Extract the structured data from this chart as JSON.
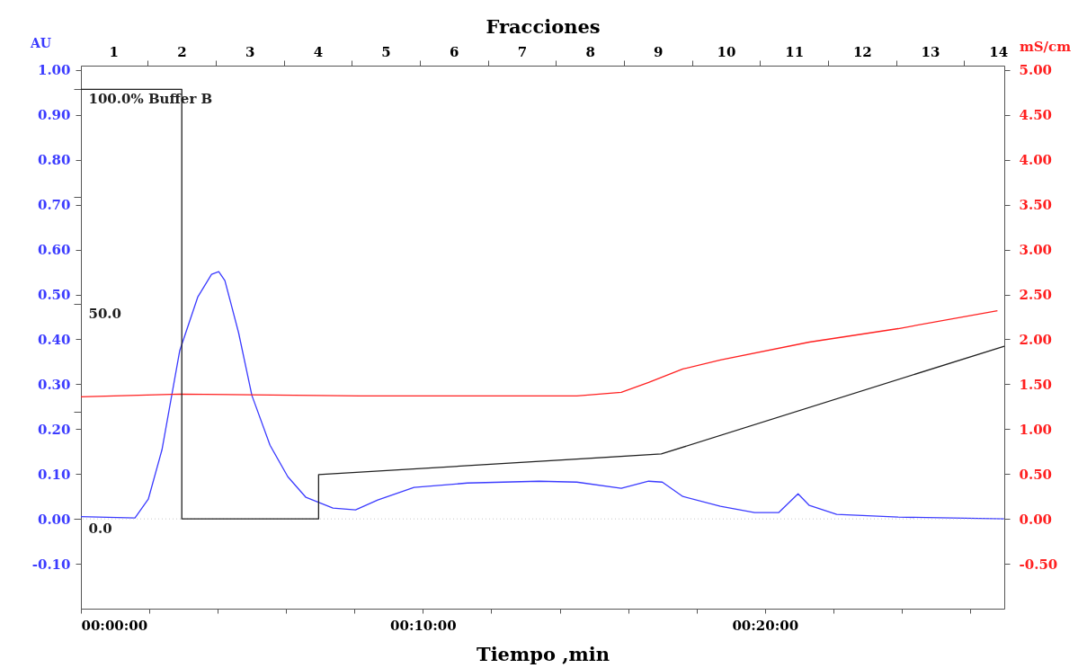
{
  "chart_data": {
    "type": "line",
    "xlabel": "Tiempo ,min",
    "ylabel": "AU",
    "y2label": "mS/cm",
    "x2label": "Fracciones",
    "xlim": [
      0,
      27
    ],
    "ylim": [
      -0.2,
      1.01
    ],
    "y2lim": [
      -1.0,
      5.05
    ],
    "y3lim": [
      -20.9,
      105.5
    ],
    "x2lim": [
      0.52,
      14.09
    ],
    "xticks": [
      {
        "value": 0,
        "label": "00:00:00"
      },
      {
        "value": 2,
        "label": null
      },
      {
        "value": 4,
        "label": null
      },
      {
        "value": 6,
        "label": null
      },
      {
        "value": 8,
        "label": null
      },
      {
        "value": 10,
        "label": "00:10:00"
      },
      {
        "value": 12,
        "label": null
      },
      {
        "value": 14,
        "label": null
      },
      {
        "value": 16,
        "label": null
      },
      {
        "value": 18,
        "label": null
      },
      {
        "value": 20,
        "label": "00:20:00"
      },
      {
        "value": 22,
        "label": null
      },
      {
        "value": 24,
        "label": null
      },
      {
        "value": 26,
        "label": null
      }
    ],
    "yticks": [
      {
        "value": -0.1,
        "label": "-0.10"
      },
      {
        "value": 0,
        "label": "0.00"
      },
      {
        "value": 0.1,
        "label": "0.10"
      },
      {
        "value": 0.2,
        "label": "0.20"
      },
      {
        "value": 0.3,
        "label": "0.30"
      },
      {
        "value": 0.4,
        "label": "0.40"
      },
      {
        "value": 0.5,
        "label": "0.50"
      },
      {
        "value": 0.6,
        "label": "0.60"
      },
      {
        "value": 0.7,
        "label": "0.70"
      },
      {
        "value": 0.8,
        "label": "0.80"
      },
      {
        "value": 0.9,
        "label": "0.90"
      },
      {
        "value": 1.0,
        "label": "1.00"
      }
    ],
    "y2ticks": [
      {
        "value": -0.5,
        "label": "-0.50"
      },
      {
        "value": 0,
        "label": "0.00"
      },
      {
        "value": 0.5,
        "label": "0.50"
      },
      {
        "value": 1.0,
        "label": "1.00"
      },
      {
        "value": 1.5,
        "label": "1.50"
      },
      {
        "value": 2.0,
        "label": "2.00"
      },
      {
        "value": 2.5,
        "label": "2.50"
      },
      {
        "value": 3.0,
        "label": "3.00"
      },
      {
        "value": 3.5,
        "label": "3.50"
      },
      {
        "value": 4.0,
        "label": "4.00"
      },
      {
        "value": 4.5,
        "label": "4.50"
      },
      {
        "value": 5.0,
        "label": "5.00"
      }
    ],
    "y3ticks": [
      {
        "value": 0,
        "label": "0.0"
      },
      {
        "value": 25,
        "label": null
      },
      {
        "value": 50,
        "label": "50.0"
      },
      {
        "value": 75,
        "label": null
      },
      {
        "value": 100,
        "label": "100.0% Buffer B"
      }
    ],
    "x2ticks": [
      1,
      {
        "value": 1.5,
        "label": null
      },
      2,
      {
        "value": 2.5,
        "label": null
      },
      3,
      {
        "value": 3.5,
        "label": null
      },
      4,
      {
        "value": 4.5,
        "label": null
      },
      5,
      {
        "value": 5.5,
        "label": null
      },
      6,
      {
        "value": 6.5,
        "label": null
      },
      7,
      {
        "value": 7.5,
        "label": null
      },
      8,
      {
        "value": 8.5,
        "label": null
      },
      9,
      {
        "value": 9.5,
        "label": null
      },
      10,
      {
        "value": 10.5,
        "label": null
      },
      11,
      {
        "value": 11.5,
        "label": null
      },
      12,
      {
        "value": 12.5,
        "label": null
      },
      13,
      {
        "value": 13.5,
        "label": null
      },
      14
    ],
    "grid": false,
    "line_style": "solid",
    "marker": "none",
    "ref_lines": [
      {
        "axis": "y",
        "value": 0,
        "label": null,
        "color": "#c8c8c8",
        "line_style": "dotted"
      }
    ],
    "series": [
      {
        "color": "#3b3bff",
        "axis": "y",
        "x": [
          0,
          1.58,
          1.97,
          2.37,
          2.89,
          3.42,
          3.82,
          4.03,
          4.21,
          4.61,
          5.0,
          5.53,
          6.05,
          6.58,
          7.37,
          8.03,
          8.68,
          9.74,
          11.3,
          13.4,
          14.5,
          15.8,
          16.6,
          17.0,
          17.6,
          18.7,
          19.7,
          20.4,
          20.97,
          21.3,
          22.1,
          23.9,
          27.0
        ],
        "values": [
          0.005,
          0.002,
          0.044,
          0.154,
          0.375,
          0.495,
          0.545,
          0.551,
          0.531,
          0.415,
          0.275,
          0.164,
          0.094,
          0.048,
          0.024,
          0.02,
          0.042,
          0.07,
          0.08,
          0.084,
          0.082,
          0.068,
          0.084,
          0.082,
          0.05,
          0.028,
          0.014,
          0.014,
          0.056,
          0.03,
          0.01,
          0.004,
          0.0
        ]
      },
      {
        "color": "#ff2020",
        "axis": "y2",
        "x": [
          0,
          2.89,
          8.16,
          14.5,
          15.8,
          16.6,
          17.6,
          18.7,
          21.3,
          23.9,
          26.8
        ],
        "values": [
          1.36,
          1.39,
          1.37,
          1.37,
          1.41,
          1.52,
          1.67,
          1.77,
          1.97,
          2.12,
          2.32
        ]
      },
      {
        "color": "#202020",
        "axis": "y3",
        "x": [
          0,
          2.95,
          2.95,
          6.95,
          6.95,
          16.97,
          27.0
        ],
        "values": [
          100,
          100,
          0,
          0,
          10.3,
          15.1,
          40.2
        ]
      }
    ]
  }
}
